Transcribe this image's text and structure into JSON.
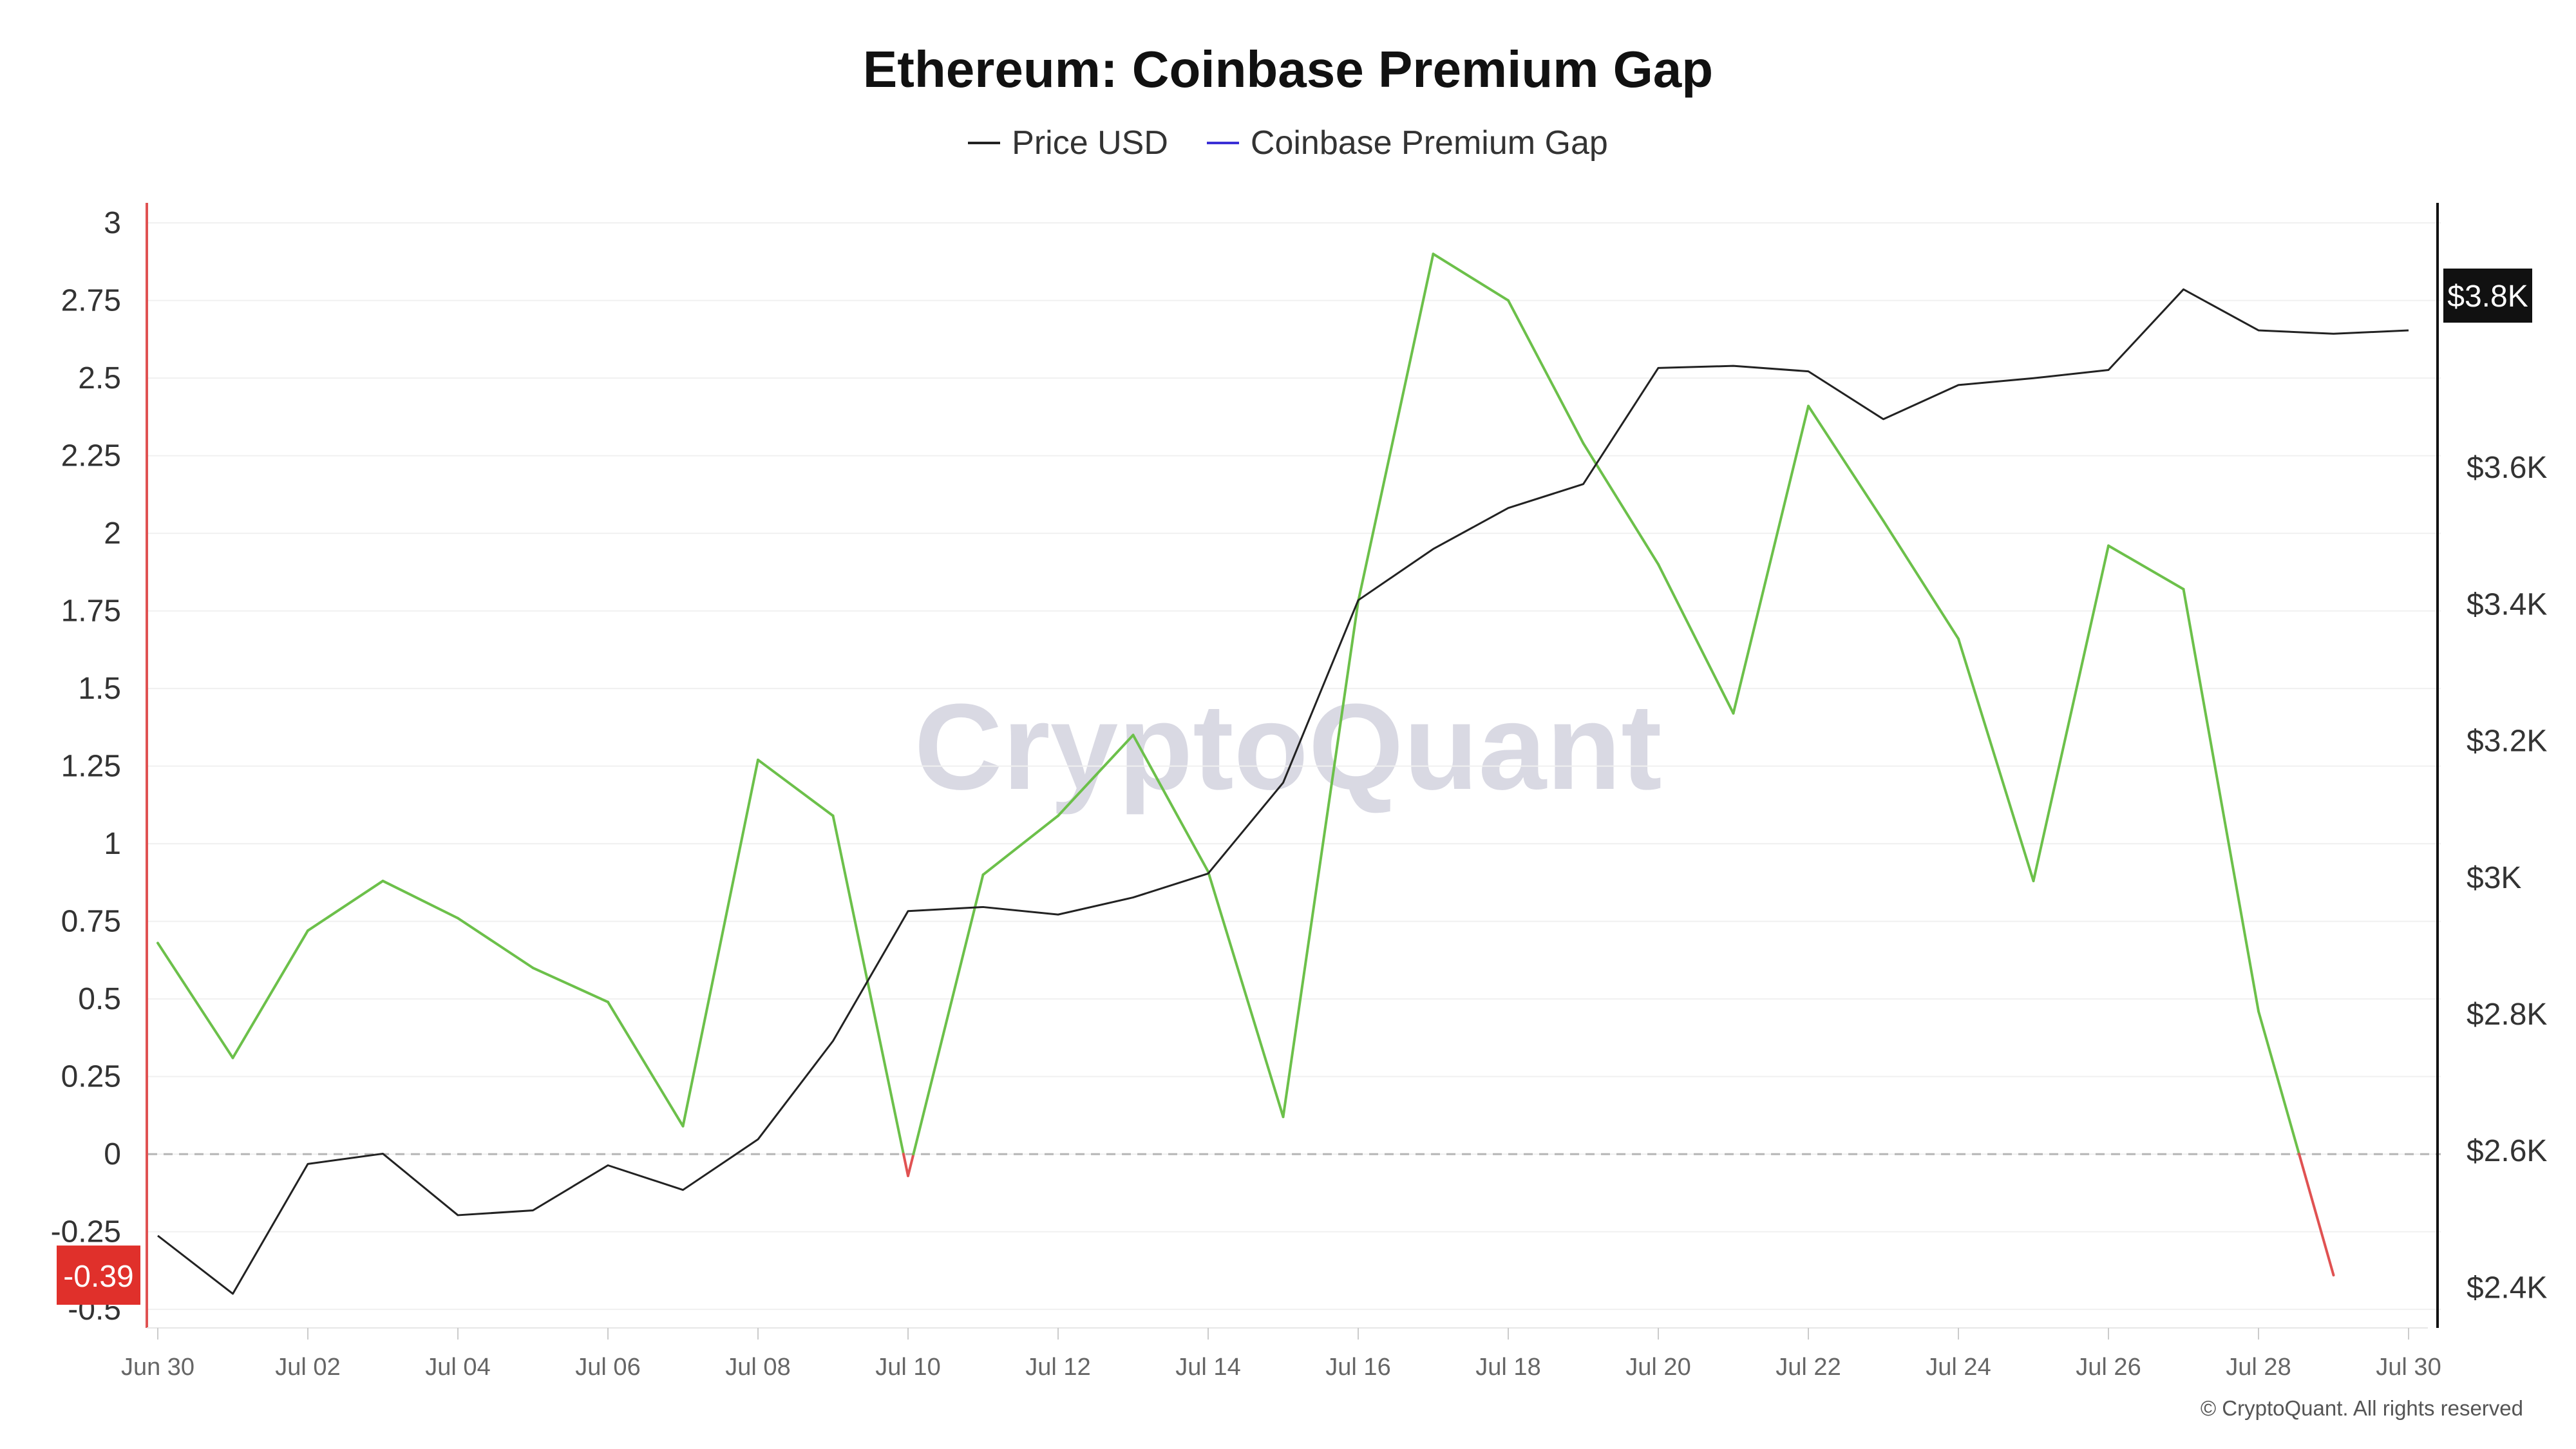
{
  "page": {
    "title": "Ethereum: Coinbase Premium Gap",
    "watermark": "CryptoQuant",
    "copyright": "© CryptoQuant. All rights reserved"
  },
  "legend": [
    {
      "name": "Price USD",
      "color": "#222222"
    },
    {
      "name": "Coinbase Premium Gap",
      "color": "#3b2fd6"
    }
  ],
  "chart_data": {
    "type": "line",
    "title": "Ethereum: Coinbase Premium Gap",
    "x": [
      "Jun 30",
      "Jul 01",
      "Jul 02",
      "Jul 03",
      "Jul 04",
      "Jul 05",
      "Jul 06",
      "Jul 07",
      "Jul 08",
      "Jul 09",
      "Jul 10",
      "Jul 11",
      "Jul 12",
      "Jul 13",
      "Jul 14",
      "Jul 15",
      "Jul 16",
      "Jul 17",
      "Jul 18",
      "Jul 19",
      "Jul 20",
      "Jul 21",
      "Jul 22",
      "Jul 23",
      "Jul 24",
      "Jul 25",
      "Jul 26",
      "Jul 27",
      "Jul 28",
      "Jul 29",
      "Jul 30"
    ],
    "x_tick_labels": [
      "Jun 30",
      "Jul 02",
      "Jul 04",
      "Jul 06",
      "Jul 08",
      "Jul 10",
      "Jul 12",
      "Jul 14",
      "Jul 16",
      "Jul 18",
      "Jul 20",
      "Jul 22",
      "Jul 24",
      "Jul 26",
      "Jul 28",
      "Jul 30"
    ],
    "left_axis": {
      "ticks": [
        3,
        2.75,
        2.5,
        2.25,
        2,
        1.75,
        1.5,
        1.25,
        1,
        0.75,
        0.5,
        0.25,
        0,
        -0.25,
        -0.5
      ],
      "tick_labels": [
        "3",
        "2.75",
        "2.5",
        "2.25",
        "2",
        "1.75",
        "1.5",
        "1.25",
        "1",
        "0.75",
        "0.5",
        "0.25",
        "0",
        "-0.25",
        "-0.5"
      ],
      "ylim": [
        -0.56,
        3.05
      ]
    },
    "right_axis": {
      "ticks": [
        3800,
        3600,
        3400,
        3200,
        3000,
        2800,
        2600,
        2400
      ],
      "tick_labels": [
        "$3.8K",
        "$3.6K",
        "$3.4K",
        "$3.2K",
        "$3K",
        "$2.8K",
        "$2.6K",
        "$2.4K"
      ],
      "ylim": [
        2340,
        3980
      ]
    },
    "series": [
      {
        "name": "Price USD",
        "axis": "right",
        "color": "#222222",
        "values": [
          2475,
          2390,
          2580,
          2595,
          2505,
          2512,
          2578,
          2542,
          2616,
          2760,
          2950,
          2956,
          2945,
          2970,
          3005,
          3138,
          3405,
          3480,
          3540,
          3575,
          3745,
          3748,
          3740,
          3670,
          3720,
          3730,
          3742,
          3860,
          3800,
          3795,
          3800
        ]
      },
      {
        "name": "Coinbase Premium Gap",
        "axis": "left",
        "positive_color": "#6cc04a",
        "negative_color": "#e05252",
        "values": [
          0.68,
          0.31,
          0.72,
          0.88,
          0.76,
          0.6,
          0.49,
          0.09,
          1.27,
          1.09,
          -0.07,
          0.9,
          1.09,
          1.35,
          0.91,
          0.12,
          1.78,
          2.9,
          2.75,
          2.29,
          1.9,
          1.42,
          2.41,
          2.04,
          1.66,
          0.88,
          1.96,
          1.82,
          0.46,
          -0.39,
          null
        ]
      }
    ],
    "current_value_badges": {
      "left": "-0.39",
      "right": "$3.8K"
    },
    "grid": true,
    "legend_position": "top-center"
  }
}
